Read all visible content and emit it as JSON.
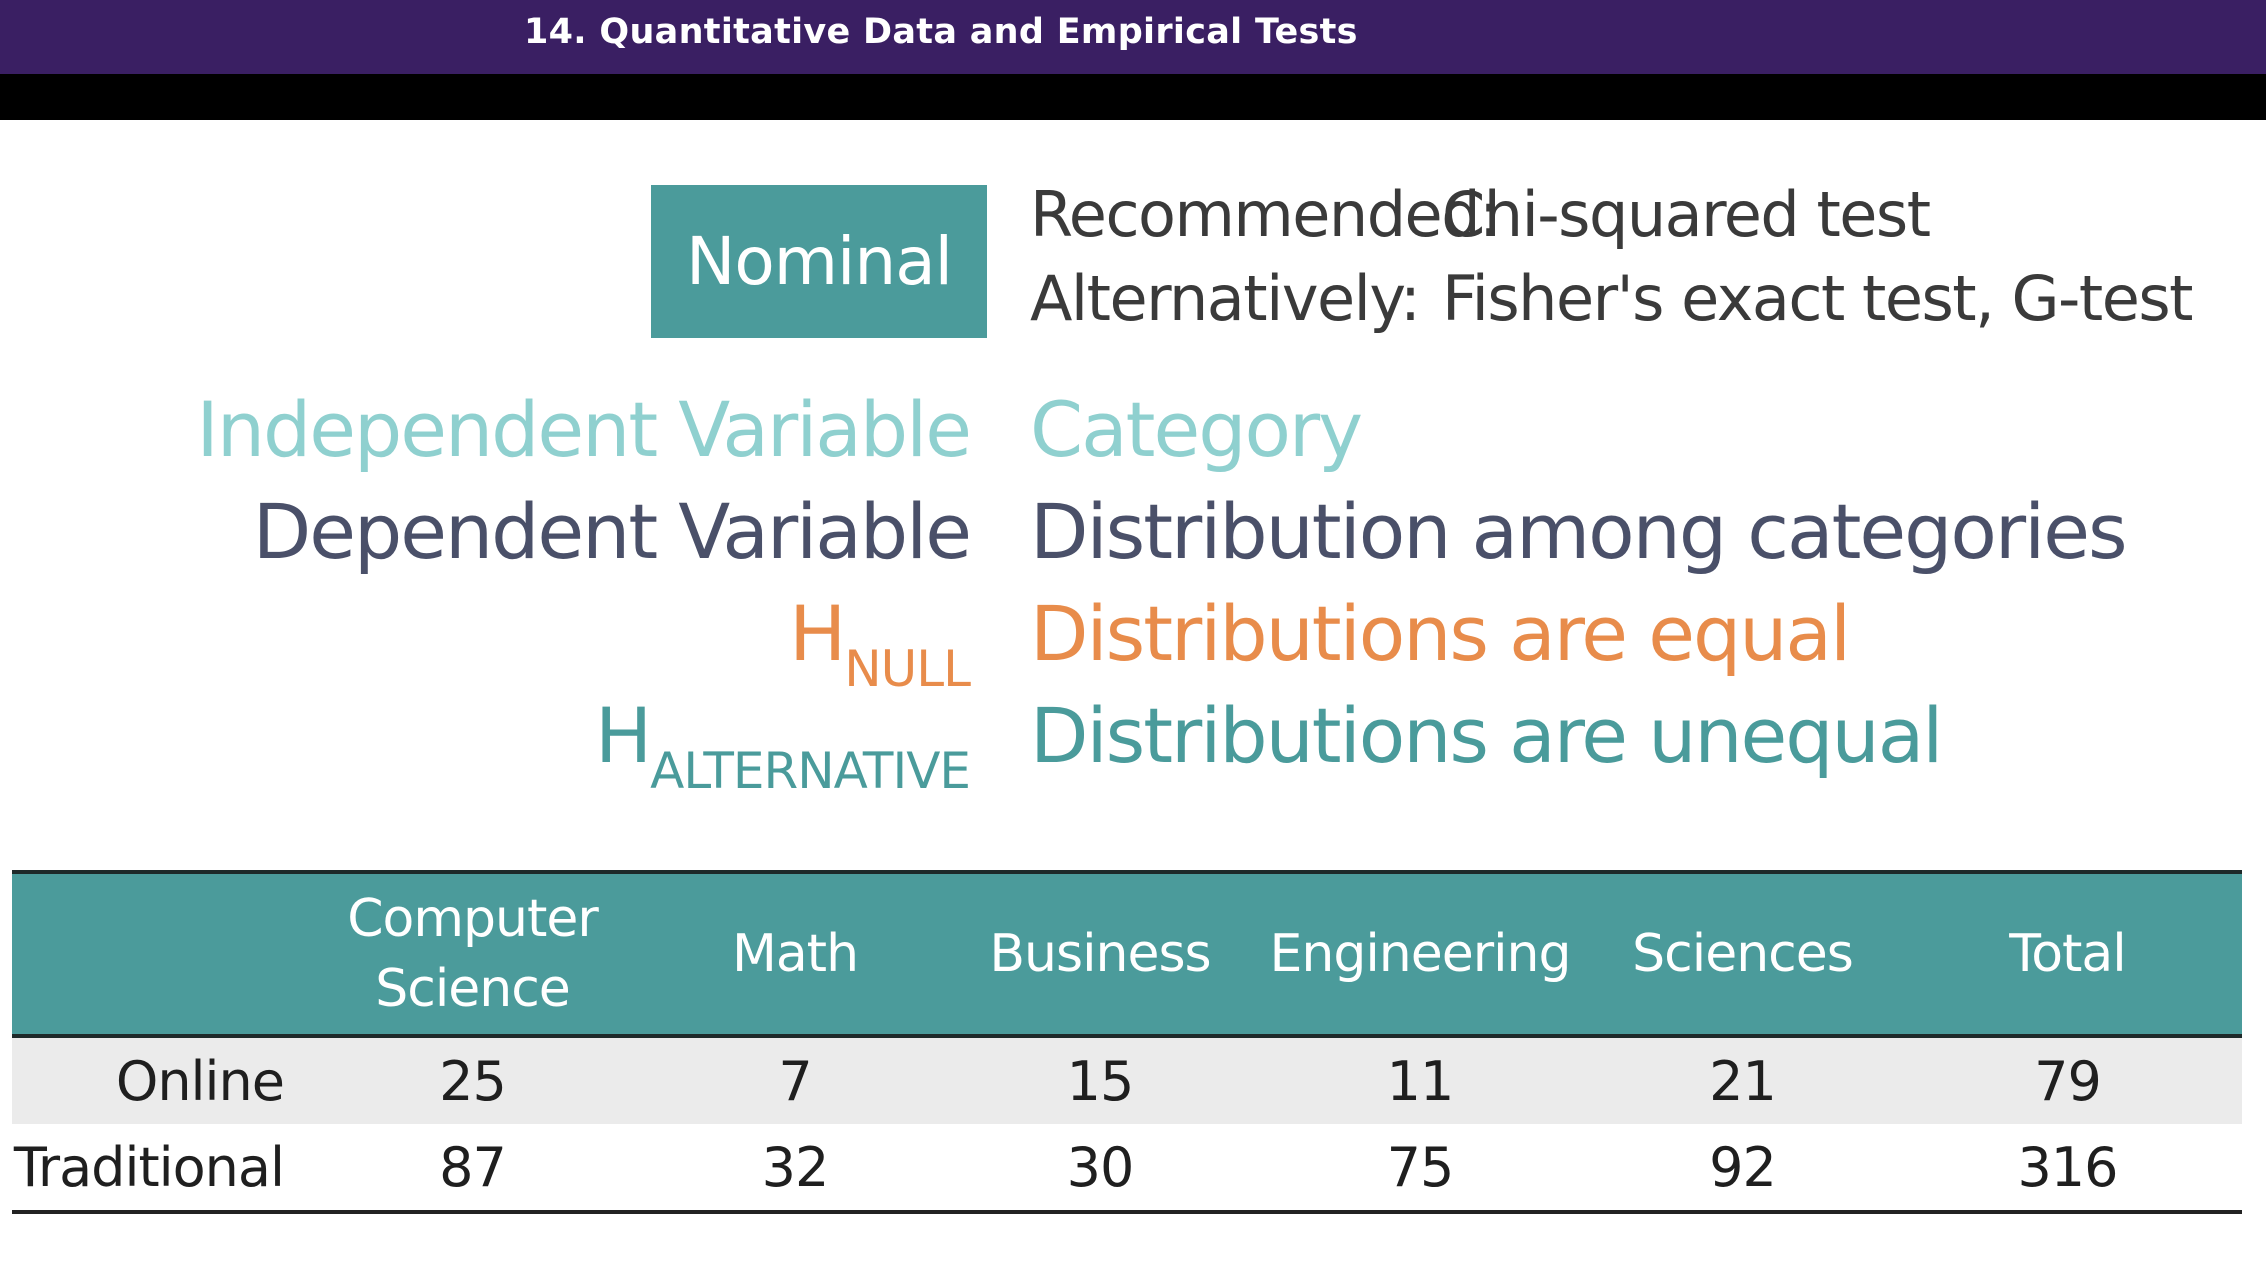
{
  "header": {
    "title": "14. Quantitative Data and Empirical Tests"
  },
  "slide": {
    "data_type": "Nominal",
    "recommended_label": "Recommended:",
    "recommended_value": "Chi-squared test",
    "alternative_label": "Alternatively:",
    "alternative_value": "Fisher's exact test, G-test",
    "variables": [
      {
        "label": "Independent Variable",
        "value": "Category"
      },
      {
        "label": "Dependent Variable",
        "value": "Distribution among categories"
      }
    ],
    "hypotheses": [
      {
        "h": "H",
        "sub": "NULL",
        "value": "Distributions are equal"
      },
      {
        "h": "H",
        "sub": "ALTERNATIVE",
        "value": "Distributions are unequal"
      }
    ],
    "colors": {
      "header_bg": "#3a1f63",
      "teal": "#4b9b9b",
      "teal_light": "#8fd0cf",
      "slate": "#4a5069",
      "orange": "#e88c4b"
    }
  },
  "table": {
    "headers": [
      "Computer Science",
      "Math",
      "Business",
      "Engineering",
      "Sciences",
      "Total"
    ],
    "rows": [
      {
        "label": "Online",
        "values": [
          "25",
          "7",
          "15",
          "11",
          "21",
          "79"
        ]
      },
      {
        "label": "Traditional",
        "values": [
          "87",
          "32",
          "30",
          "75",
          "92",
          "316"
        ]
      }
    ]
  }
}
